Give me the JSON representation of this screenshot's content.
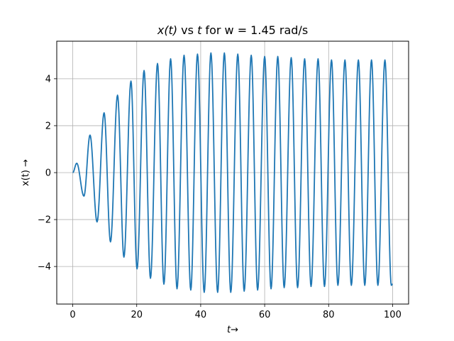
{
  "chart_data": {
    "type": "line",
    "title_parts": {
      "x_of_t": "x(t)",
      "vs": " vs ",
      "t": "t",
      "rest": " for w = 1.45 rad/s"
    },
    "xlabel": "t→",
    "ylabel": "x(t) →",
    "xlim": [
      -5,
      105
    ],
    "ylim": [
      -5.6,
      5.6
    ],
    "xticks": [
      0,
      20,
      40,
      60,
      80,
      100
    ],
    "yticks": [
      -4,
      -2,
      0,
      2,
      4
    ],
    "ytick_labels": [
      "−4",
      "−2",
      "0",
      "2",
      "4"
    ],
    "grid": true,
    "line_color": "#1f77b4",
    "series": [
      {
        "t": [
          0,
          1.25,
          3.5,
          5.4,
          7.6,
          9.8,
          11.8,
          14.0,
          16.0,
          18.2,
          20.1,
          22.3,
          24.3,
          26.5,
          28.5,
          30.6,
          32.6,
          34.8,
          36.9,
          39.0,
          41.1,
          43.2,
          45.3,
          47.4,
          49.4,
          51.6,
          53.6,
          55.8,
          57.8,
          60.0,
          62.0,
          64.1,
          66.1,
          68.3,
          70.3,
          72.5,
          74.5,
          76.7,
          78.7,
          80.9,
          82.9,
          85.1,
          87.1,
          89.3,
          91.3,
          93.4,
          95.4,
          97.6,
          99.6,
          100
        ],
        "x": [
          0,
          0.4,
          -1.0,
          1.6,
          -2.1,
          2.55,
          -2.95,
          3.3,
          -3.6,
          3.9,
          -4.1,
          4.35,
          -4.5,
          4.65,
          -4.75,
          4.85,
          -4.95,
          5.0,
          -5.0,
          5.05,
          -5.1,
          5.1,
          -5.1,
          5.1,
          -5.1,
          5.05,
          -5.05,
          5.0,
          -5.0,
          4.95,
          -4.95,
          4.95,
          -4.9,
          4.9,
          -4.9,
          4.85,
          -4.85,
          4.85,
          -4.85,
          4.8,
          -4.8,
          4.8,
          -4.8,
          4.8,
          -4.8,
          4.8,
          -4.8,
          4.8,
          -4.8,
          -4.75
        ]
      }
    ]
  }
}
